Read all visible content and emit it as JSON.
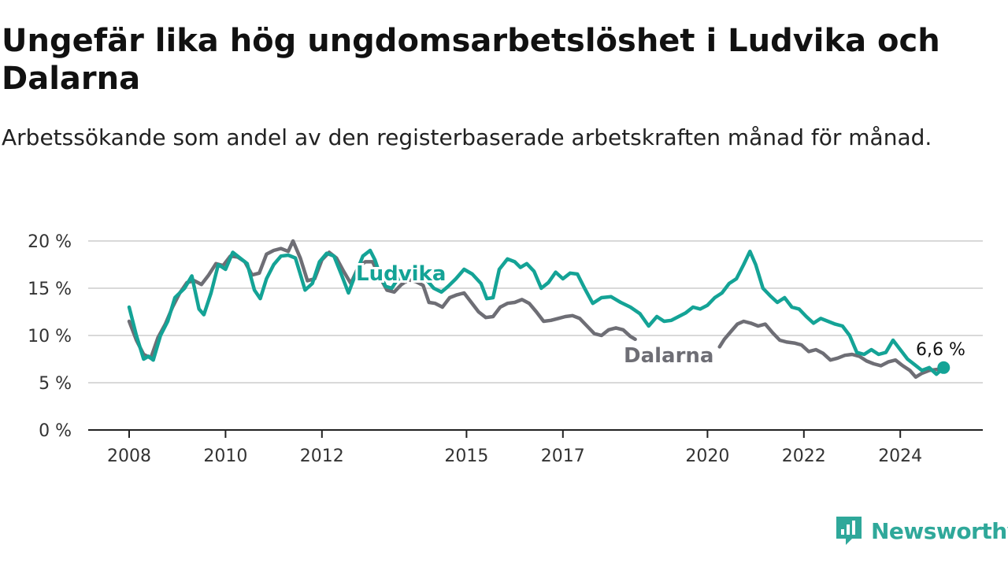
{
  "title": "Ungefär lika hög ungdomsarbetslöshet i Ludvika och Dalarna",
  "subtitle": "Arbetssökande som andel av den registerbaserade arbetskraften månad för månad.",
  "brand": "Newsworthy",
  "colors": {
    "Ludvika": "#14a396",
    "Dalarna": "#6e6e75",
    "grid": "#d9d9d9",
    "axis": "#222222"
  },
  "chart_data": {
    "type": "line",
    "title": "Ungefär lika hög ungdomsarbetslöshet i Ludvika och Dalarna",
    "subtitle": "Arbetssökande som andel av den registerbaserade arbetskraften månad för månad.",
    "xlabel": "",
    "ylabel": "",
    "xlim": [
      2008,
      2025.2
    ],
    "ylim": [
      0,
      20
    ],
    "y_ticks": [
      0,
      5,
      10,
      15,
      20
    ],
    "y_tick_labels": [
      "0 %",
      "5 %",
      "10 %",
      "15 %",
      "20 %"
    ],
    "x_ticks": [
      2008,
      2010,
      2012,
      2015,
      2017,
      2020,
      2022,
      2024
    ],
    "x_tick_labels": [
      "2008",
      "2010",
      "2012",
      "2015",
      "2017",
      "2020",
      "2022",
      "2024"
    ],
    "grid": true,
    "end_label": "6,6 %",
    "series": [
      {
        "name": "Ludvika",
        "points": [
          [
            2008.0,
            13.0
          ],
          [
            2008.15,
            10.0
          ],
          [
            2008.3,
            7.5
          ],
          [
            2008.4,
            7.8
          ],
          [
            2008.5,
            7.4
          ],
          [
            2008.65,
            10.0
          ],
          [
            2008.8,
            11.5
          ],
          [
            2008.95,
            14.0
          ],
          [
            2009.15,
            15.0
          ],
          [
            2009.3,
            16.3
          ],
          [
            2009.45,
            12.8
          ],
          [
            2009.55,
            12.2
          ],
          [
            2009.7,
            14.5
          ],
          [
            2009.85,
            17.5
          ],
          [
            2010.0,
            17.0
          ],
          [
            2010.15,
            18.8
          ],
          [
            2010.3,
            18.2
          ],
          [
            2010.45,
            17.6
          ],
          [
            2010.6,
            14.8
          ],
          [
            2010.72,
            13.9
          ],
          [
            2010.85,
            16.0
          ],
          [
            2011.0,
            17.5
          ],
          [
            2011.15,
            18.4
          ],
          [
            2011.3,
            18.5
          ],
          [
            2011.45,
            18.2
          ],
          [
            2011.55,
            16.5
          ],
          [
            2011.65,
            14.8
          ],
          [
            2011.8,
            15.5
          ],
          [
            2011.95,
            17.8
          ],
          [
            2012.1,
            18.7
          ],
          [
            2012.25,
            18.4
          ],
          [
            2012.4,
            16.5
          ],
          [
            2012.55,
            14.5
          ],
          [
            2012.7,
            16.5
          ],
          [
            2012.85,
            18.4
          ],
          [
            2013.0,
            19.0
          ],
          [
            2013.1,
            18.0
          ],
          [
            2013.2,
            16.5
          ],
          [
            2013.32,
            15.2
          ],
          [
            2013.45,
            15.0
          ],
          [
            2013.55,
            15.8
          ],
          [
            2013.7,
            16.4
          ],
          [
            2013.85,
            16.6
          ],
          [
            2014.0,
            16.5
          ],
          [
            2014.15,
            16.0
          ],
          [
            2014.32,
            15.0
          ],
          [
            2014.48,
            14.6
          ],
          [
            2014.62,
            15.2
          ],
          [
            2014.78,
            16.0
          ],
          [
            2014.95,
            17.0
          ],
          [
            2015.12,
            16.5
          ],
          [
            2015.3,
            15.5
          ],
          [
            2015.42,
            13.9
          ],
          [
            2015.55,
            14.0
          ],
          [
            2015.68,
            17.0
          ],
          [
            2015.85,
            18.1
          ],
          [
            2016.0,
            17.8
          ],
          [
            2016.12,
            17.2
          ],
          [
            2016.25,
            17.6
          ],
          [
            2016.4,
            16.8
          ],
          [
            2016.55,
            15.0
          ],
          [
            2016.7,
            15.6
          ],
          [
            2016.85,
            16.7
          ],
          [
            2017.0,
            16.0
          ],
          [
            2017.15,
            16.6
          ],
          [
            2017.3,
            16.5
          ],
          [
            2017.45,
            15.0
          ],
          [
            2017.62,
            13.4
          ],
          [
            2017.8,
            14.0
          ],
          [
            2018.0,
            14.1
          ],
          [
            2018.2,
            13.5
          ],
          [
            2018.4,
            13.0
          ],
          [
            2018.6,
            12.3
          ],
          [
            2018.78,
            11.0
          ],
          [
            2018.95,
            12.0
          ],
          [
            2019.1,
            11.5
          ],
          [
            2019.25,
            11.6
          ],
          [
            2019.4,
            12.0
          ],
          [
            2019.55,
            12.4
          ],
          [
            2019.7,
            13.0
          ],
          [
            2019.85,
            12.8
          ],
          [
            2020.0,
            13.2
          ],
          [
            2020.15,
            14.0
          ],
          [
            2020.3,
            14.5
          ],
          [
            2020.45,
            15.5
          ],
          [
            2020.6,
            16.0
          ],
          [
            2020.75,
            17.5
          ],
          [
            2020.88,
            18.9
          ],
          [
            2021.0,
            17.5
          ],
          [
            2021.15,
            15.0
          ],
          [
            2021.3,
            14.2
          ],
          [
            2021.45,
            13.5
          ],
          [
            2021.6,
            14.0
          ],
          [
            2021.75,
            13.0
          ],
          [
            2021.9,
            12.8
          ],
          [
            2022.05,
            12.0
          ],
          [
            2022.2,
            11.3
          ],
          [
            2022.35,
            11.8
          ],
          [
            2022.5,
            11.5
          ],
          [
            2022.65,
            11.2
          ],
          [
            2022.8,
            11.0
          ],
          [
            2022.95,
            10.0
          ],
          [
            2023.1,
            8.2
          ],
          [
            2023.25,
            8.0
          ],
          [
            2023.4,
            8.5
          ],
          [
            2023.55,
            8.0
          ],
          [
            2023.7,
            8.2
          ],
          [
            2023.85,
            9.5
          ],
          [
            2024.0,
            8.5
          ],
          [
            2024.15,
            7.5
          ],
          [
            2024.3,
            6.9
          ],
          [
            2024.45,
            6.3
          ],
          [
            2024.6,
            6.6
          ],
          [
            2024.75,
            5.9
          ],
          [
            2024.9,
            6.6
          ]
        ]
      },
      {
        "name": "Dalarna",
        "points": [
          [
            2008.0,
            11.5
          ],
          [
            2008.15,
            9.5
          ],
          [
            2008.3,
            8.0
          ],
          [
            2008.45,
            7.6
          ],
          [
            2008.6,
            9.8
          ],
          [
            2008.75,
            11.2
          ],
          [
            2008.9,
            13.0
          ],
          [
            2009.05,
            14.5
          ],
          [
            2009.2,
            15.6
          ],
          [
            2009.35,
            15.8
          ],
          [
            2009.5,
            15.4
          ],
          [
            2009.65,
            16.4
          ],
          [
            2009.8,
            17.6
          ],
          [
            2009.95,
            17.4
          ],
          [
            2010.1,
            18.4
          ],
          [
            2010.25,
            18.3
          ],
          [
            2010.4,
            17.8
          ],
          [
            2010.55,
            16.4
          ],
          [
            2010.7,
            16.6
          ],
          [
            2010.85,
            18.6
          ],
          [
            2011.0,
            19.0
          ],
          [
            2011.15,
            19.2
          ],
          [
            2011.3,
            18.9
          ],
          [
            2011.4,
            20.0
          ],
          [
            2011.55,
            18.2
          ],
          [
            2011.7,
            15.8
          ],
          [
            2011.85,
            16.0
          ],
          [
            2012.0,
            18.0
          ],
          [
            2012.15,
            18.8
          ],
          [
            2012.3,
            18.2
          ],
          [
            2012.45,
            16.8
          ],
          [
            2012.6,
            15.5
          ],
          [
            2012.75,
            17.2
          ],
          [
            2012.9,
            17.8
          ],
          [
            2013.05,
            17.8
          ],
          [
            2013.2,
            16.2
          ],
          [
            2013.35,
            14.8
          ],
          [
            2013.5,
            14.6
          ],
          [
            2013.65,
            15.4
          ],
          [
            2013.8,
            15.9
          ],
          [
            2013.95,
            15.7
          ],
          [
            2014.1,
            15.3
          ],
          [
            2014.22,
            13.5
          ],
          [
            2014.35,
            13.4
          ],
          [
            2014.5,
            13.0
          ],
          [
            2014.65,
            14.0
          ],
          [
            2014.8,
            14.3
          ],
          [
            2014.95,
            14.5
          ],
          [
            2015.1,
            13.5
          ],
          [
            2015.25,
            12.5
          ],
          [
            2015.4,
            11.9
          ],
          [
            2015.55,
            12.0
          ],
          [
            2015.7,
            13.0
          ],
          [
            2015.85,
            13.4
          ],
          [
            2016.0,
            13.5
          ],
          [
            2016.15,
            13.8
          ],
          [
            2016.3,
            13.4
          ],
          [
            2016.45,
            12.5
          ],
          [
            2016.6,
            11.5
          ],
          [
            2016.75,
            11.6
          ],
          [
            2016.9,
            11.8
          ],
          [
            2017.05,
            12.0
          ],
          [
            2017.2,
            12.1
          ],
          [
            2017.35,
            11.8
          ],
          [
            2017.5,
            11.0
          ],
          [
            2017.65,
            10.2
          ],
          [
            2017.8,
            10.0
          ],
          [
            2017.95,
            10.6
          ],
          [
            2018.1,
            10.8
          ],
          [
            2018.25,
            10.6
          ],
          [
            2018.4,
            9.9
          ],
          [
            2018.5,
            9.6
          ]
        ]
      },
      {
        "name": "Dalarna",
        "points": [
          [
            2020.25,
            8.8
          ],
          [
            2020.35,
            9.6
          ],
          [
            2020.5,
            10.5
          ],
          [
            2020.62,
            11.2
          ],
          [
            2020.75,
            11.5
          ],
          [
            2020.9,
            11.3
          ],
          [
            2021.05,
            11.0
          ],
          [
            2021.2,
            11.2
          ],
          [
            2021.35,
            10.3
          ],
          [
            2021.5,
            9.5
          ],
          [
            2021.65,
            9.3
          ],
          [
            2021.8,
            9.2
          ],
          [
            2021.95,
            9.0
          ],
          [
            2022.1,
            8.3
          ],
          [
            2022.25,
            8.5
          ],
          [
            2022.4,
            8.1
          ],
          [
            2022.55,
            7.4
          ],
          [
            2022.7,
            7.6
          ],
          [
            2022.85,
            7.9
          ],
          [
            2023.0,
            8.0
          ],
          [
            2023.15,
            7.8
          ],
          [
            2023.3,
            7.3
          ],
          [
            2023.45,
            7.0
          ],
          [
            2023.6,
            6.8
          ],
          [
            2023.75,
            7.2
          ],
          [
            2023.9,
            7.4
          ],
          [
            2024.05,
            6.8
          ],
          [
            2024.2,
            6.3
          ],
          [
            2024.32,
            5.6
          ],
          [
            2024.45,
            6.0
          ],
          [
            2024.6,
            6.3
          ],
          [
            2024.75,
            6.4
          ],
          [
            2024.9,
            6.5
          ]
        ]
      }
    ]
  }
}
